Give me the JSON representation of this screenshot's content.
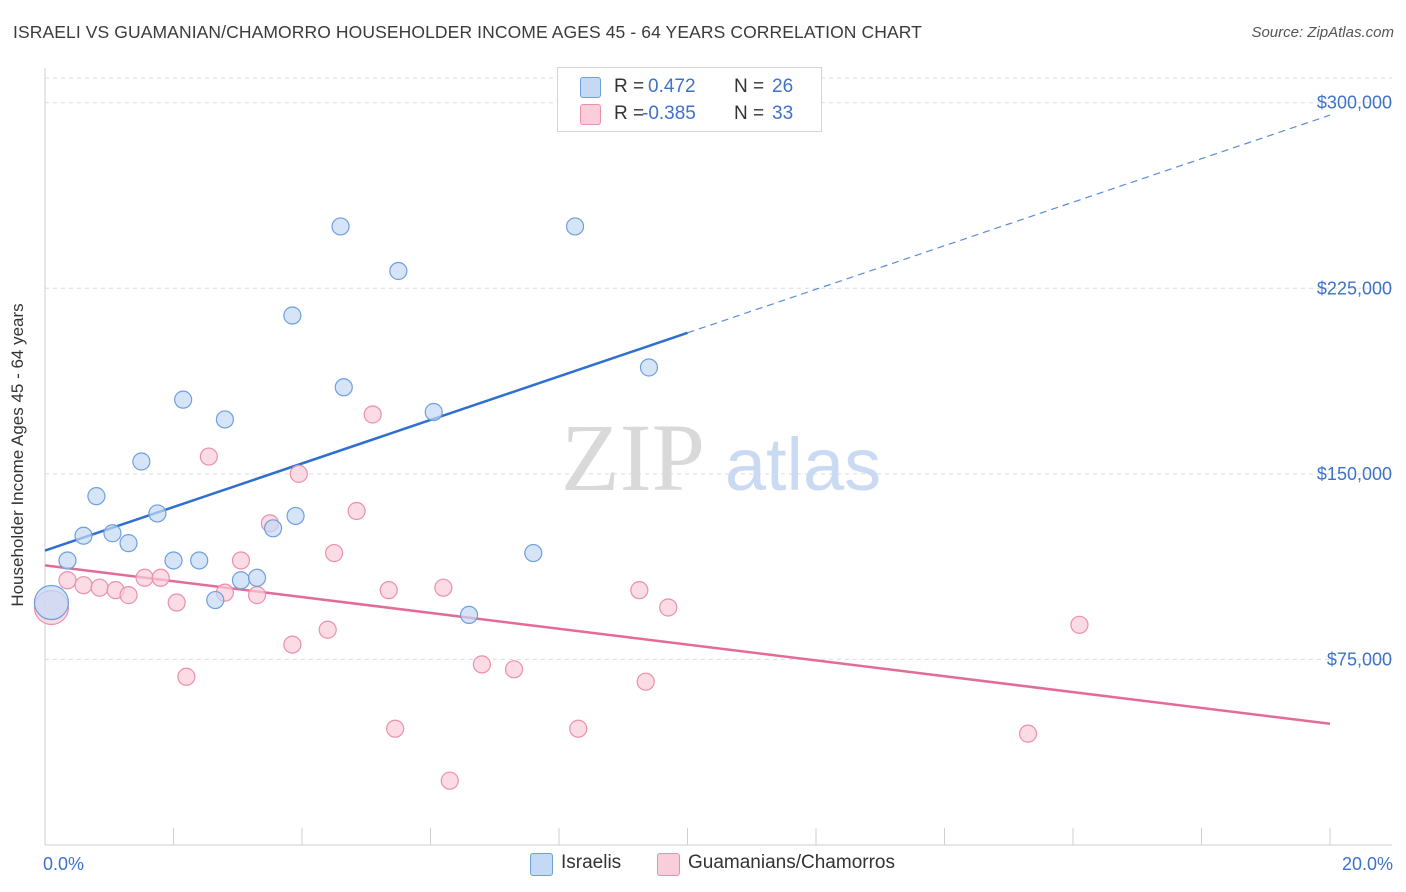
{
  "title": "ISRAELI VS GUAMANIAN/CHAMORRO HOUSEHOLDER INCOME AGES 45 - 64 YEARS CORRELATION CHART",
  "source": "Source: ZipAtlas.com",
  "watermark": {
    "zip": "ZIP",
    "atlas": "atlas"
  },
  "legend": {
    "rows": [
      {
        "r_label": "R =",
        "r_value": "0.472",
        "n_label": "N =",
        "n_value": "26"
      },
      {
        "r_label": "R =",
        "r_value": "-0.385",
        "n_label": "N =",
        "n_value": "33"
      }
    ]
  },
  "bottom_legend": [
    "Israelis",
    "Guamanians/Chamorros"
  ],
  "colors": {
    "israelis_fill": "#c5d9f5",
    "israelis_stroke": "#6f9fdc",
    "israelis_line": "#2f6fcf",
    "guam_fill": "#f9cdda",
    "guam_stroke": "#ec8fad",
    "guam_line": "#e36b97",
    "tick_text": "#3d72c9",
    "grid": "#dcdcdc"
  },
  "chart_data": {
    "type": "scatter",
    "xlabel": "",
    "ylabel": "Householder Income Ages 45 - 64 years",
    "x_tick_labels": [
      "0.0%",
      "20.0%"
    ],
    "y_tick_labels": [
      "$75,000",
      "$150,000",
      "$225,000",
      "$300,000"
    ],
    "y_ticks": [
      75000,
      150000,
      225000,
      300000
    ],
    "xlim": [
      0,
      20
    ],
    "ylim": [
      0,
      310000
    ],
    "grid": true,
    "legend_position": "top-center",
    "series": [
      {
        "name": "Israelis",
        "points": [
          [
            0.1,
            98000
          ],
          [
            0.35,
            115000
          ],
          [
            0.6,
            125000
          ],
          [
            0.8,
            141000
          ],
          [
            1.05,
            126000
          ],
          [
            1.3,
            122000
          ],
          [
            1.5,
            155000
          ],
          [
            1.75,
            134000
          ],
          [
            2.0,
            115000
          ],
          [
            2.15,
            180000
          ],
          [
            2.4,
            115000
          ],
          [
            2.65,
            99000
          ],
          [
            2.8,
            172000
          ],
          [
            3.05,
            107000
          ],
          [
            3.3,
            108000
          ],
          [
            3.55,
            128000
          ],
          [
            3.85,
            214000
          ],
          [
            3.9,
            133000
          ],
          [
            4.6,
            250000
          ],
          [
            4.65,
            185000
          ],
          [
            5.5,
            232000
          ],
          [
            6.05,
            175000
          ],
          [
            6.6,
            93000
          ],
          [
            7.6,
            118000
          ],
          [
            8.25,
            250000
          ],
          [
            9.4,
            193000
          ]
        ],
        "trend": {
          "x": [
            0,
            10,
            20
          ],
          "y": [
            119000,
            207000,
            295000
          ],
          "solid_until_x": 10
        }
      },
      {
        "name": "Guamanians/Chamorros",
        "points": [
          [
            0.1,
            96000
          ],
          [
            0.35,
            107000
          ],
          [
            0.6,
            105000
          ],
          [
            0.85,
            104000
          ],
          [
            1.1,
            103000
          ],
          [
            1.3,
            101000
          ],
          [
            1.55,
            108000
          ],
          [
            1.8,
            108000
          ],
          [
            2.05,
            98000
          ],
          [
            2.2,
            68000
          ],
          [
            2.55,
            157000
          ],
          [
            2.8,
            102000
          ],
          [
            3.05,
            115000
          ],
          [
            3.3,
            101000
          ],
          [
            3.5,
            130000
          ],
          [
            3.85,
            81000
          ],
          [
            3.95,
            150000
          ],
          [
            4.4,
            87000
          ],
          [
            4.5,
            118000
          ],
          [
            4.85,
            135000
          ],
          [
            5.1,
            174000
          ],
          [
            5.35,
            103000
          ],
          [
            5.45,
            47000
          ],
          [
            6.2,
            104000
          ],
          [
            6.3,
            26000
          ],
          [
            6.8,
            73000
          ],
          [
            7.3,
            71000
          ],
          [
            8.3,
            47000
          ],
          [
            9.25,
            103000
          ],
          [
            9.35,
            66000
          ],
          [
            9.7,
            96000
          ],
          [
            15.3,
            45000
          ],
          [
            16.1,
            89000
          ]
        ],
        "trend": {
          "x": [
            0,
            20
          ],
          "y": [
            113000,
            49000
          ]
        }
      }
    ]
  }
}
